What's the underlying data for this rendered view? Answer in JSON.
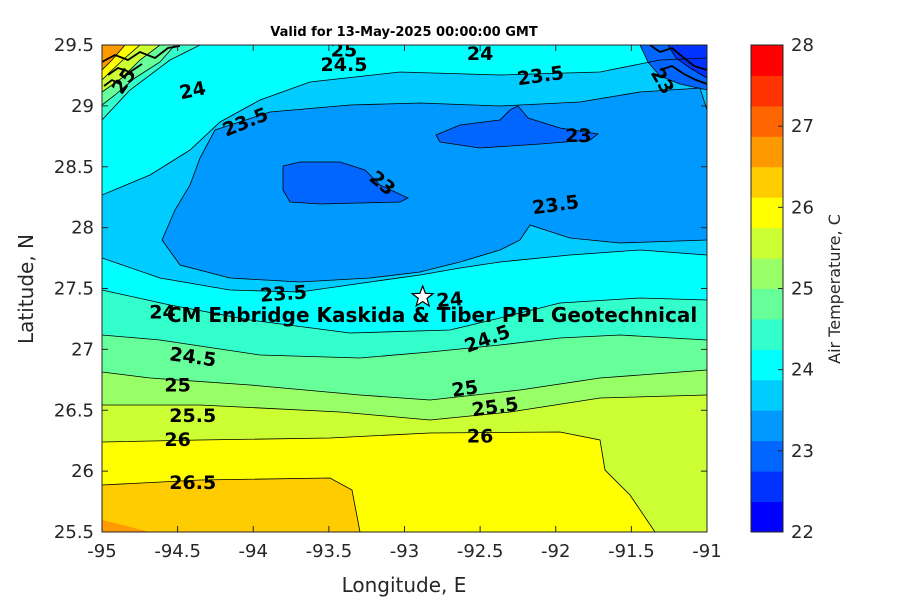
{
  "chart_data": {
    "type": "contour",
    "title": "Valid for 13-May-2025 00:00:00 GMT",
    "xlabel": "Longitude, E",
    "ylabel": "Latitude, N",
    "xlim": [
      -95,
      -91
    ],
    "ylim": [
      25.5,
      29.5
    ],
    "xticks": [
      "-95",
      "-94.5",
      "-94",
      "-93.5",
      "-93",
      "-92.5",
      "-92",
      "-91.5",
      "-91"
    ],
    "yticks": [
      "25.5",
      "26",
      "26.5",
      "27",
      "27.5",
      "28",
      "28.5",
      "29",
      "29.5"
    ],
    "colorbar": {
      "label": "Air Temperature, C",
      "range": [
        22,
        28
      ],
      "step": 0.5,
      "ticks": [
        "22",
        "23",
        "24",
        "25",
        "26",
        "27",
        "28"
      ],
      "colors": [
        "#0000ff",
        "#0033ff",
        "#0066ff",
        "#0099ff",
        "#00ccff",
        "#00ffff",
        "#33ffcc",
        "#66ff99",
        "#99ff66",
        "#ccff33",
        "#ffff00",
        "#ffcc00",
        "#ff9900",
        "#ff6600",
        "#ff3300",
        "#ff0000"
      ]
    },
    "contour_labels": [
      {
        "text": "25",
        "lon": -94.85,
        "lat": 29.2,
        "angle": -55
      },
      {
        "text": "25",
        "lon": -93.4,
        "lat": 29.45,
        "angle": 0
      },
      {
        "text": "24.5",
        "lon": -93.4,
        "lat": 29.33,
        "angle": 0
      },
      {
        "text": "24",
        "lon": -92.5,
        "lat": 29.42,
        "angle": 0
      },
      {
        "text": "23.5",
        "lon": -92.1,
        "lat": 29.24,
        "angle": -8
      },
      {
        "text": "23",
        "lon": -91.3,
        "lat": 29.2,
        "angle": 60
      },
      {
        "text": "24",
        "lon": -94.4,
        "lat": 29.12,
        "angle": -12
      },
      {
        "text": "23.5",
        "lon": -94.05,
        "lat": 28.86,
        "angle": -22
      },
      {
        "text": "23",
        "lon": -91.85,
        "lat": 28.75,
        "angle": 0
      },
      {
        "text": "23",
        "lon": -93.15,
        "lat": 28.36,
        "angle": 40
      },
      {
        "text": "23.5",
        "lon": -92,
        "lat": 28.18,
        "angle": -8
      },
      {
        "text": "23.5",
        "lon": -93.8,
        "lat": 27.45,
        "angle": -4
      },
      {
        "text": "24",
        "lon": -92.7,
        "lat": 27.4,
        "angle": -5
      },
      {
        "text": "24",
        "lon": -94.6,
        "lat": 27.3,
        "angle": 0
      },
      {
        "text": "24.5",
        "lon": -94.4,
        "lat": 26.93,
        "angle": 8
      },
      {
        "text": "24.5",
        "lon": -92.45,
        "lat": 27.08,
        "angle": -20
      },
      {
        "text": "25",
        "lon": -94.5,
        "lat": 26.7,
        "angle": 0
      },
      {
        "text": "25",
        "lon": -92.6,
        "lat": 26.67,
        "angle": -8
      },
      {
        "text": "25.5",
        "lon": -94.4,
        "lat": 26.45,
        "angle": 0
      },
      {
        "text": "25.5",
        "lon": -92.4,
        "lat": 26.52,
        "angle": -8
      },
      {
        "text": "26",
        "lon": -94.5,
        "lat": 26.25,
        "angle": 0
      },
      {
        "text": "26",
        "lon": -92.5,
        "lat": 26.28,
        "angle": 0
      },
      {
        "text": "26.5",
        "lon": -94.4,
        "lat": 25.9,
        "angle": 0
      }
    ],
    "annotation": {
      "text": "CM Enbridge  Kaskida & Tiber PPL Geotechnical",
      "marker_lon": -92.88,
      "marker_lat": 27.43
    }
  }
}
